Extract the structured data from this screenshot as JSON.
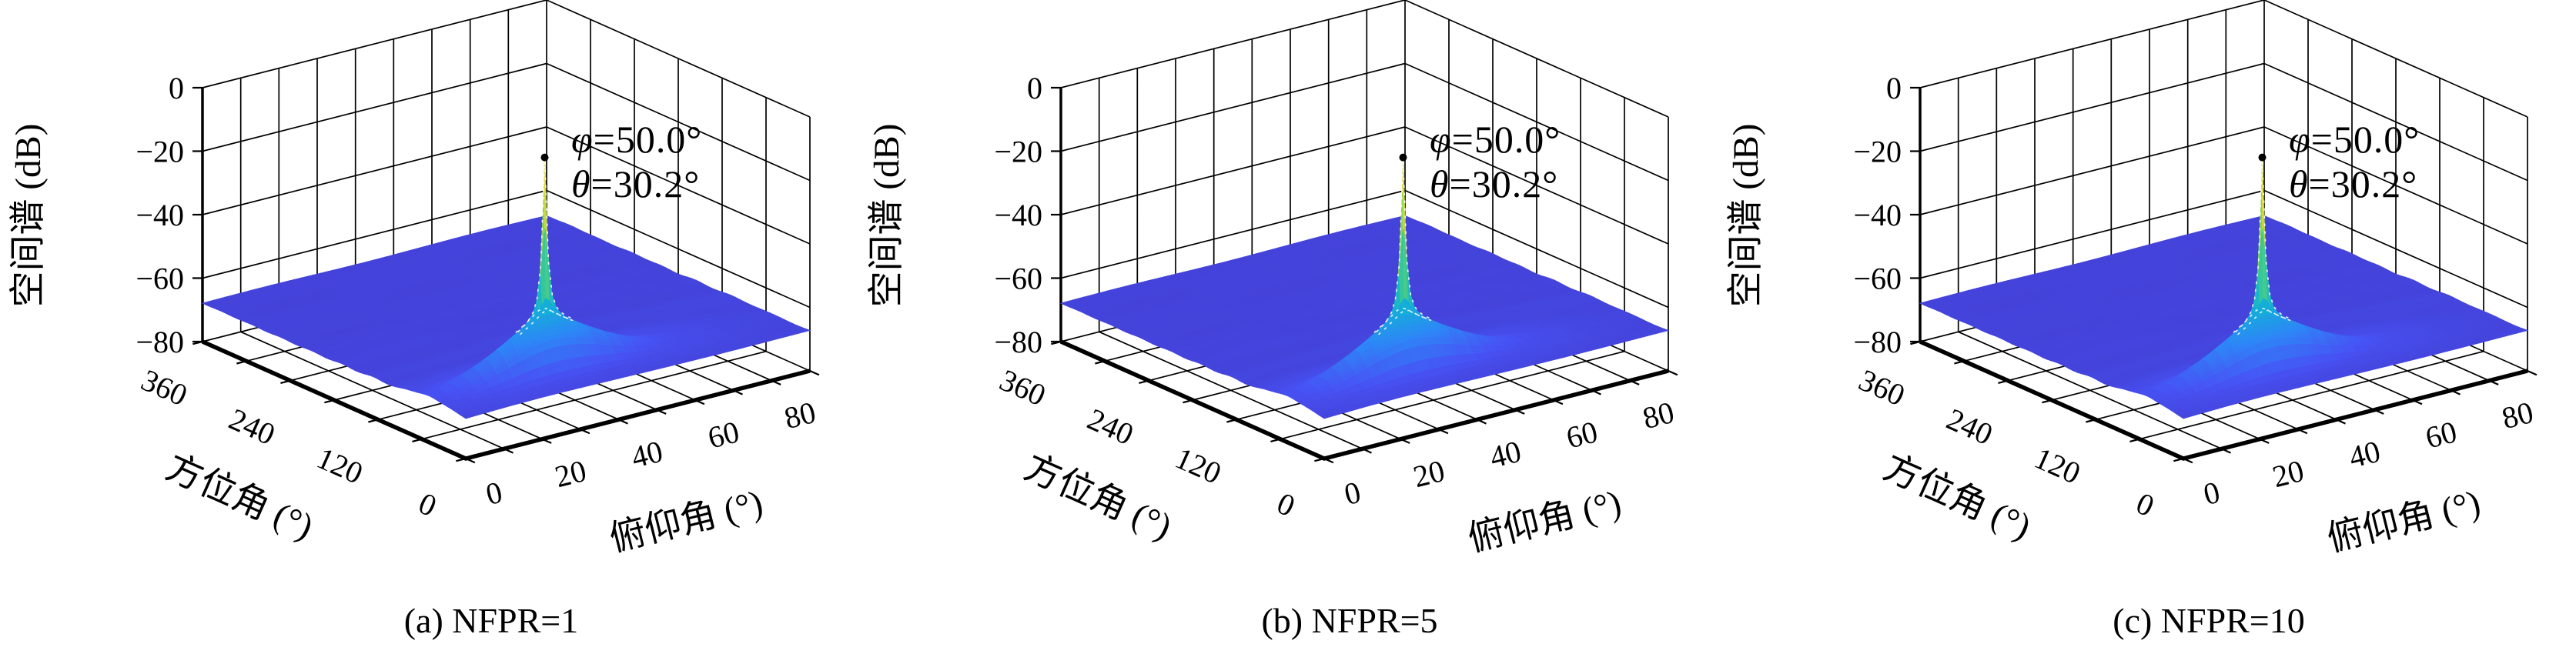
{
  "figure": {
    "background": "#ffffff",
    "text_color": "#000000",
    "grid_color": "#000000"
  },
  "chart_data": [
    {
      "type": "3d-surface",
      "caption": "(a) NFPR=1",
      "xlabel": "俯仰角 (°)",
      "ylabel": "方位角 (°)",
      "zlabel": "空间谱 (dB)",
      "xlim": [
        0,
        90
      ],
      "ylim": [
        0,
        360
      ],
      "zlim": [
        -80,
        0
      ],
      "x_ticks": [
        0,
        20,
        40,
        60,
        80
      ],
      "y_ticks": [
        0,
        120,
        240,
        360
      ],
      "z_ticks": [
        0,
        -20,
        -40,
        -60,
        -80
      ],
      "x_grid_step_deg": 10,
      "y_grid_step_deg": 60,
      "noise_floor_db": -72,
      "peak": {
        "azimuth_deg": 50.0,
        "elevation_deg": 30.2,
        "value_db": 0
      },
      "annotation_lines": [
        "φ=50.0°",
        "θ=30.2°"
      ],
      "marker": {
        "shape": "dot",
        "color": "#000000"
      },
      "colormap": "parula",
      "colormap_low": "#3e26a8",
      "colormap_high": "#f9fb14",
      "grid": true
    },
    {
      "type": "3d-surface",
      "caption": "(b) NFPR=5",
      "xlabel": "俯仰角 (°)",
      "ylabel": "方位角 (°)",
      "zlabel": "空间谱 (dB)",
      "xlim": [
        0,
        90
      ],
      "ylim": [
        0,
        360
      ],
      "zlim": [
        -80,
        0
      ],
      "x_ticks": [
        0,
        20,
        40,
        60,
        80
      ],
      "y_ticks": [
        0,
        120,
        240,
        360
      ],
      "z_ticks": [
        0,
        -20,
        -40,
        -60,
        -80
      ],
      "x_grid_step_deg": 10,
      "y_grid_step_deg": 60,
      "noise_floor_db": -72,
      "peak": {
        "azimuth_deg": 50.0,
        "elevation_deg": 30.2,
        "value_db": 0
      },
      "annotation_lines": [
        "φ=50.0°",
        "θ=30.2°"
      ],
      "marker": {
        "shape": "dot",
        "color": "#000000"
      },
      "colormap": "parula",
      "colormap_low": "#3e26a8",
      "colormap_high": "#f9fb14",
      "grid": true
    },
    {
      "type": "3d-surface",
      "caption": "(c) NFPR=10",
      "xlabel": "俯仰角 (°)",
      "ylabel": "方位角 (°)",
      "zlabel": "空间谱 (dB)",
      "xlim": [
        0,
        90
      ],
      "ylim": [
        0,
        360
      ],
      "zlim": [
        -80,
        0
      ],
      "x_ticks": [
        0,
        20,
        40,
        60,
        80
      ],
      "y_ticks": [
        0,
        120,
        240,
        360
      ],
      "z_ticks": [
        0,
        -20,
        -40,
        -60,
        -80
      ],
      "x_grid_step_deg": 10,
      "y_grid_step_deg": 60,
      "noise_floor_db": -72,
      "peak": {
        "azimuth_deg": 50.0,
        "elevation_deg": 30.2,
        "value_db": 0
      },
      "annotation_lines": [
        "φ=50.0°",
        "θ=30.2°"
      ],
      "marker": {
        "shape": "dot",
        "color": "#000000"
      },
      "colormap": "parula",
      "colormap_low": "#3e26a8",
      "colormap_high": "#f9fb14",
      "grid": true
    }
  ]
}
